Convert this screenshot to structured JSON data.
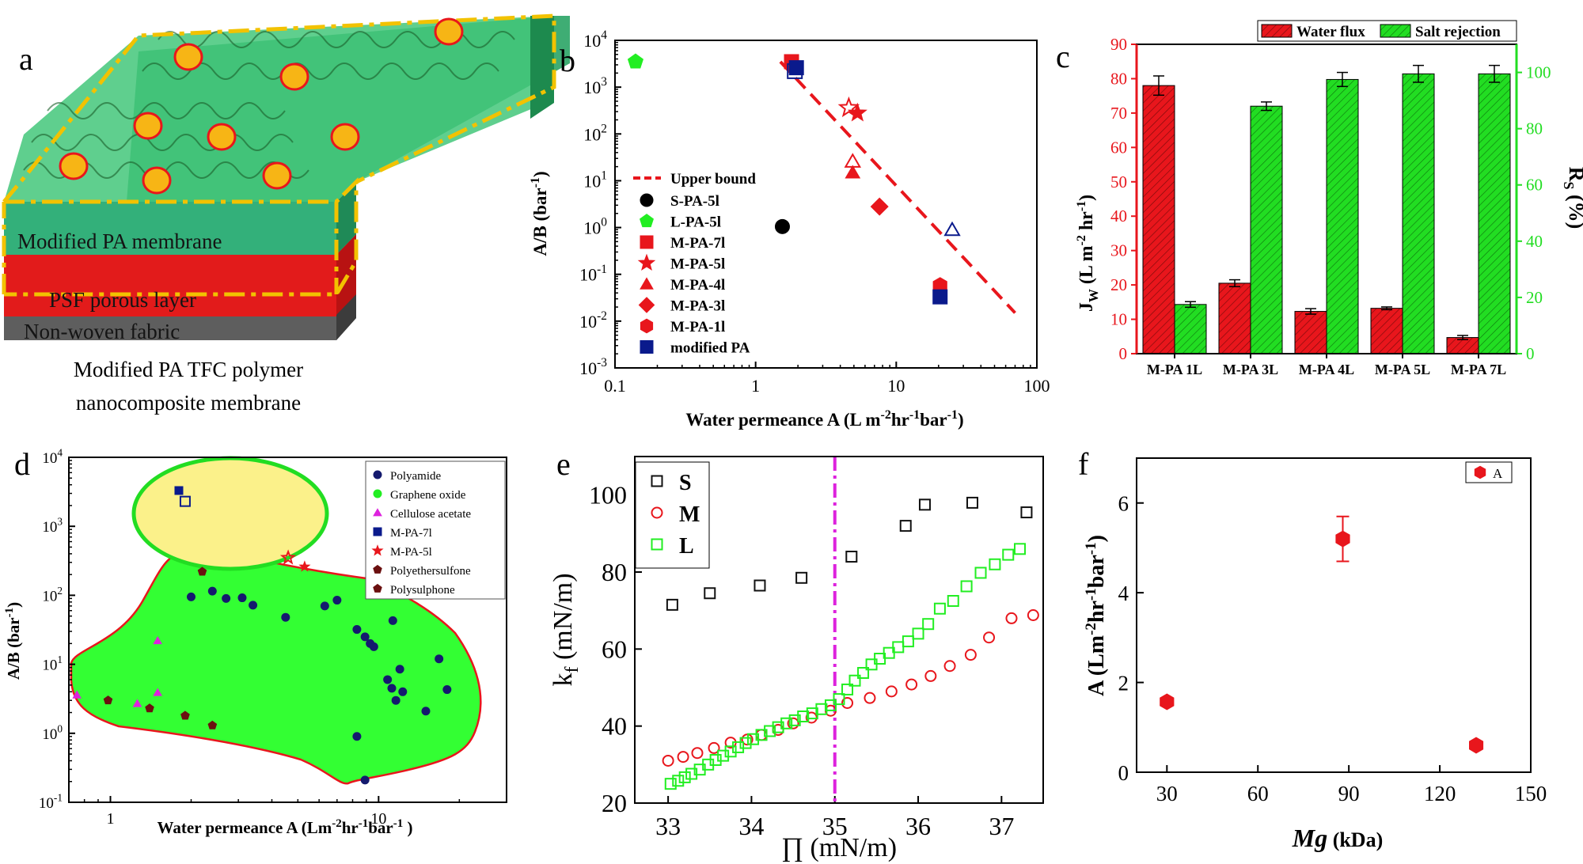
{
  "panel_letters": {
    "a": "a",
    "b": "b",
    "c": "c",
    "d": "d",
    "e": "e",
    "f": "f"
  },
  "panel_a": {
    "layers": [
      "Modified PA membrane",
      "PSF porous layer",
      "Non-woven fabric"
    ],
    "caption_lines": [
      "Modified PA TFC polymer",
      "nanocomposite membrane"
    ]
  },
  "chart_data": [
    {
      "panel": "b",
      "type": "scatter",
      "xlabel_base": "Water permeance A (L m",
      "xlabel_sup1": "-2",
      "xlabel_mid": "hr",
      "xlabel_sup2": "-1",
      "xlabel_mid2": "bar",
      "xlabel_sup3": "-1",
      "xlabel_end": ")",
      "ylabel_base": "A/B (bar",
      "ylabel_sup": "-1",
      "ylabel_end": ")",
      "xscale": "log",
      "yscale": "log",
      "xlim": [
        0.1,
        100
      ],
      "ylim": [
        0.001,
        10000
      ],
      "xticks": [
        {
          "v": 0.1,
          "label": "0.1"
        },
        {
          "v": 1,
          "label": "1"
        },
        {
          "v": 10,
          "label": "10"
        },
        {
          "v": 100,
          "label": "100"
        }
      ],
      "yticks": [
        {
          "v": 0.001,
          "b": "10",
          "e": "-3"
        },
        {
          "v": 0.01,
          "b": "10",
          "e": "-2"
        },
        {
          "v": 0.1,
          "b": "10",
          "e": "-1"
        },
        {
          "v": 1,
          "b": "10",
          "e": "0"
        },
        {
          "v": 10,
          "b": "10",
          "e": "1"
        },
        {
          "v": 100,
          "b": "10",
          "e": "2"
        },
        {
          "v": 1000,
          "b": "10",
          "e": "3"
        },
        {
          "v": 10000,
          "b": "10",
          "e": "4"
        }
      ],
      "upper_bound": {
        "name": "Upper bound",
        "points": [
          [
            1.5,
            3500
          ],
          [
            70,
            0.015
          ]
        ],
        "color": "#e8161c"
      },
      "series": [
        {
          "name": "S-PA-5l",
          "marker": "circle",
          "color": "#000000",
          "fill": true,
          "points": [
            [
              1.55,
              1.05
            ]
          ]
        },
        {
          "name": "L-PA-5l",
          "marker": "pentagon",
          "color": "#22ee22",
          "fill": true,
          "points": [
            [
              0.14,
              3500
            ]
          ]
        },
        {
          "name": "M-PA-7l",
          "marker": "square",
          "color": "#e8161c",
          "fill": true,
          "points": [
            [
              1.8,
              3500
            ]
          ]
        },
        {
          "name": "M-PA-5l",
          "marker": "star",
          "color": "#e8161c",
          "fill": true,
          "points": [
            [
              5.3,
              280
            ]
          ]
        },
        {
          "name": "M-PA-4l",
          "marker": "triangle",
          "color": "#e8161c",
          "fill": true,
          "points": [
            [
              4.9,
              15
            ]
          ]
        },
        {
          "name": "M-PA-3l",
          "marker": "diamond",
          "color": "#e8161c",
          "fill": true,
          "points": [
            [
              7.6,
              2.8
            ]
          ]
        },
        {
          "name": "M-PA-1l",
          "marker": "hexagon",
          "color": "#e8161c",
          "fill": true,
          "points": [
            [
              20.5,
              0.058
            ]
          ]
        },
        {
          "name": "modified PA",
          "marker": "square",
          "color": "#0a1a8c",
          "fill": true,
          "points": [
            [
              20.5,
              0.033
            ],
            [
              1.95,
              2600
            ]
          ]
        }
      ],
      "extra_markers": [
        {
          "marker": "square",
          "color": "#0a1a8c",
          "fill": false,
          "points": [
            [
              1.9,
              2200
            ]
          ]
        },
        {
          "marker": "star",
          "color": "#e8161c",
          "fill": false,
          "points": [
            [
              4.6,
              360
            ]
          ]
        },
        {
          "marker": "triangle",
          "color": "#e8161c",
          "fill": false,
          "points": [
            [
              4.9,
              26
            ]
          ]
        },
        {
          "marker": "triangle",
          "color": "#0a1a8c",
          "fill": false,
          "points": [
            [
              25,
              0.9
            ]
          ]
        }
      ]
    },
    {
      "panel": "c",
      "type": "bar",
      "categories": [
        "M-PA 1L",
        "M-PA 3L",
        "M-PA 4L",
        "M-PA 5L",
        "M-PA 7L"
      ],
      "series": [
        {
          "name": "Water flux",
          "axis": "left",
          "color": "#e8161c",
          "values": [
            78,
            20.5,
            12.3,
            13.2,
            4.7
          ],
          "errors": [
            2.8,
            1.0,
            0.8,
            0.4,
            0.6
          ]
        },
        {
          "name": "Salt rejection",
          "axis": "right",
          "color": "#22dd22",
          "values": [
            17.5,
            88,
            97.5,
            99.5,
            99.5
          ],
          "errors": [
            1.0,
            1.5,
            2.5,
            3.0,
            3.0
          ]
        }
      ],
      "ylim_left": [
        0,
        90
      ],
      "ylim_right": [
        0,
        110
      ],
      "yticks_left": [
        "0",
        "10",
        "20",
        "30",
        "40",
        "50",
        "60",
        "70",
        "80",
        "90"
      ],
      "yticks_right": [
        "0",
        "20",
        "40",
        "60",
        "80",
        "100"
      ],
      "ylabel_left_base": "J",
      "ylabel_left_sub": "W",
      "ylabel_left_rest": " (L m",
      "ylabel_left_sup1": "-2",
      "ylabel_left_mid": " hr",
      "ylabel_left_sup2": "-1",
      "ylabel_left_end": ")",
      "ylabel_right_base": "R",
      "ylabel_right_sub": "S",
      "ylabel_right_rest": " (%)",
      "legend_position": "top-right"
    },
    {
      "panel": "d",
      "type": "scatter",
      "xscale": "log",
      "yscale": "log",
      "xlim": [
        0.7,
        30
      ],
      "ylim": [
        0.1,
        10000
      ],
      "xticks": [
        {
          "v": 1,
          "label": "1"
        },
        {
          "v": 10,
          "label": "10"
        }
      ],
      "yticks": [
        {
          "v": 0.1,
          "b": "10",
          "e": "-1"
        },
        {
          "v": 1,
          "b": "10",
          "e": "0"
        },
        {
          "v": 10,
          "b": "10",
          "e": "1"
        },
        {
          "v": 100,
          "b": "10",
          "e": "2"
        },
        {
          "v": 1000,
          "b": "10",
          "e": "3"
        },
        {
          "v": 10000,
          "b": "10",
          "e": "4"
        }
      ],
      "xlabel_base": "Water permeance A (Lm",
      "xlabel_sup1": "-2",
      "xlabel_mid": "hr",
      "xlabel_sup2": "-1",
      "xlabel_mid2": "bar",
      "xlabel_sup3": "-1",
      "xlabel_end": " )",
      "ylabel_base": "A/B (bar",
      "ylabel_sup": "-1",
      "ylabel_end": ")",
      "region_colors": {
        "green": "#33ff33",
        "yellow": "#fbf18a",
        "outline_red": "#e8161c",
        "outline_green": "#22dd22"
      },
      "series": [
        {
          "name": "Polyamide",
          "marker": "circle",
          "color": "#141a6e",
          "points": [
            [
              2.0,
              95
            ],
            [
              2.4,
              115
            ],
            [
              2.7,
              90
            ],
            [
              3.1,
              92
            ],
            [
              3.4,
              72
            ],
            [
              4.5,
              48
            ],
            [
              6.3,
              70
            ],
            [
              7.0,
              85
            ],
            [
              8.3,
              32
            ],
            [
              8.9,
              25
            ],
            [
              9.3,
              20
            ],
            [
              9.6,
              18
            ],
            [
              10.8,
              6
            ],
            [
              11.2,
              4.5
            ],
            [
              11.6,
              3.0
            ],
            [
              12.0,
              8.5
            ],
            [
              12.3,
              4.0
            ],
            [
              11.3,
              43
            ],
            [
              15.0,
              2.1
            ],
            [
              16.8,
              12
            ],
            [
              18.0,
              4.3
            ],
            [
              8.3,
              0.9
            ],
            [
              8.9,
              0.21
            ]
          ]
        },
        {
          "name": "Graphene oxide",
          "marker": "circle",
          "color": "#22ee22",
          "points": []
        },
        {
          "name": "Cellulose acetate",
          "marker": "triangle",
          "color": "#dd22dd",
          "points": [
            [
              0.75,
              3.6
            ],
            [
              1.26,
              2.7
            ],
            [
              1.5,
              22
            ],
            [
              1.5,
              3.9
            ]
          ]
        },
        {
          "name": "M-PA-7l",
          "marker": "square",
          "color": "#0a1a8c",
          "points": [
            [
              1.8,
              3300
            ]
          ]
        },
        {
          "name": "M-PA-5l",
          "marker": "star",
          "color": "#e8161c",
          "points": [
            [
              5.3,
              260
            ]
          ]
        },
        {
          "name": "Polyethersulfone",
          "marker": "pentagon",
          "color": "#6b1010",
          "points": [
            [
              0.98,
              3.0
            ],
            [
              1.4,
              2.3
            ],
            [
              1.9,
              1.8
            ],
            [
              2.4,
              1.3
            ],
            [
              2.2,
              220
            ]
          ]
        },
        {
          "name": "Polysulphone",
          "marker": "pentagon",
          "color": "#6b1010",
          "points": []
        }
      ],
      "extra_markers": [
        {
          "marker": "square",
          "color": "#0a1a8c",
          "fill": false,
          "points": [
            [
              1.9,
              2300
            ]
          ]
        },
        {
          "marker": "star",
          "color": "#e8161c",
          "fill": false,
          "points": [
            [
              4.6,
              350
            ]
          ]
        }
      ]
    },
    {
      "panel": "e",
      "type": "scatter",
      "xlim": [
        32.6,
        37.5
      ],
      "ylim": [
        20,
        110
      ],
      "xticks": [
        "33",
        "34",
        "35",
        "36",
        "37"
      ],
      "yticks": [
        "20",
        "40",
        "60",
        "80",
        "100"
      ],
      "xlabel": "∏ (mN/m)",
      "ylabel_base": "k",
      "ylabel_sub": "f",
      "ylabel_rest": " (mN/m)",
      "vline": {
        "x": 35,
        "color": "#dd22dd"
      },
      "series": [
        {
          "name": "S",
          "marker": "square-open",
          "color": "#111111",
          "x": [
            33.05,
            33.5,
            34.1,
            34.6,
            35.2,
            35.85,
            36.08,
            36.65,
            37.3
          ],
          "y": [
            71.5,
            74.5,
            76.5,
            78.5,
            84,
            92,
            97.5,
            98,
            95.5
          ]
        },
        {
          "name": "M",
          "marker": "circle-open",
          "color": "#e8161c",
          "x": [
            33.0,
            33.18,
            33.35,
            33.55,
            33.75,
            33.95,
            34.12,
            34.32,
            34.5,
            34.72,
            34.95,
            35.15,
            35.42,
            35.68,
            35.92,
            36.15,
            36.38,
            36.63,
            36.85,
            37.12,
            37.38
          ],
          "y": [
            31,
            32,
            33,
            34.3,
            35.7,
            36.5,
            37.7,
            39,
            40.7,
            42.2,
            44,
            46,
            47.3,
            49,
            50.8,
            53,
            55.6,
            58.5,
            63,
            68,
            68.8
          ]
        },
        {
          "name": "L",
          "marker": "square-open",
          "color": "#22ee22",
          "x": [
            33.03,
            33.12,
            33.2,
            33.28,
            33.38,
            33.48,
            33.57,
            33.66,
            33.75,
            33.84,
            33.93,
            34.02,
            34.12,
            34.22,
            34.32,
            34.42,
            34.52,
            34.62,
            34.73,
            34.84,
            34.95,
            35.05,
            35.15,
            35.24,
            35.34,
            35.44,
            35.54,
            35.65,
            35.76,
            35.88,
            36.0,
            36.12,
            36.26,
            36.42,
            36.58,
            36.75,
            36.92,
            37.08,
            37.22
          ],
          "y": [
            25,
            25.8,
            26.7,
            27.6,
            28.7,
            30,
            31.2,
            32.3,
            33.4,
            34.5,
            35.6,
            36.6,
            37.7,
            38.7,
            39.7,
            40.7,
            41.5,
            42.5,
            43.3,
            44.4,
            45.4,
            47,
            49.5,
            51.8,
            53.8,
            56,
            57.5,
            59,
            60.5,
            62,
            64,
            66.5,
            70.5,
            72.5,
            76.3,
            79.8,
            82,
            84.5,
            86
          ]
        }
      ],
      "legend_position": "top-left"
    },
    {
      "panel": "f",
      "type": "scatter",
      "xlim": [
        20,
        150
      ],
      "ylim": [
        0,
        7
      ],
      "xticks": [
        "30",
        "60",
        "90",
        "120",
        "150"
      ],
      "yticks": [
        "0",
        "2",
        "4",
        "6"
      ],
      "xlabel_base": "Mg",
      "xlabel_unit": " (kDa)",
      "ylabel_base": "A (Lm",
      "ylabel_sup1": "-2",
      "ylabel_mid": "hr",
      "ylabel_sup2": "-1",
      "ylabel_mid2": "bar",
      "ylabel_sup3": "-1",
      "ylabel_end": ")",
      "series": [
        {
          "name": "A",
          "marker": "hexagon",
          "color": "#e8161c",
          "x": [
            30,
            88,
            132
          ],
          "y": [
            1.57,
            5.2,
            0.6
          ],
          "errors": [
            0,
            0.5,
            0
          ]
        }
      ],
      "legend_position": "top-right"
    }
  ]
}
